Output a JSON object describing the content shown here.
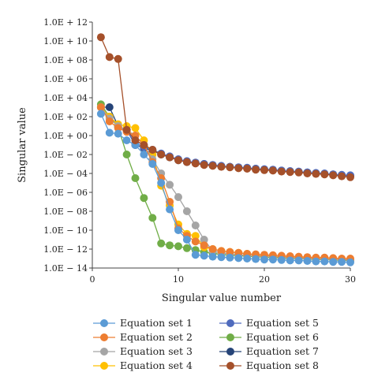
{
  "chart_data": {
    "type": "line",
    "xlabel": "Singular value number",
    "ylabel": "Singular value",
    "xlim": [
      0,
      30
    ],
    "ylim": [
      -14,
      12
    ],
    "y_scale": "log",
    "x_ticks": [
      0,
      10,
      20,
      30
    ],
    "x_tick_labels": [
      "0",
      "10",
      "20",
      "30"
    ],
    "y_ticks": [
      12,
      10,
      8,
      6,
      4,
      2,
      0,
      -2,
      -4,
      -6,
      -8,
      -10,
      -12,
      -14
    ],
    "y_tick_labels": [
      "1.0E + 12",
      "1.0E + 10",
      "1.0E + 08",
      "1.0E + 06",
      "1.0E + 04",
      "1.0E + 02",
      "1.0E + 00",
      "1.0E − 02",
      "1.0E − 04",
      "1.0E − 06",
      "1.0E − 08",
      "1.0E − 10",
      "1.0E − 12",
      "1.0E − 14"
    ],
    "grid": false,
    "legend_position": "bottom",
    "series": [
      {
        "name": "Equation set 1",
        "color": "#5b9bd5",
        "x": [
          1,
          2,
          3,
          4,
          5,
          6,
          7,
          8,
          9,
          10,
          11,
          12,
          13,
          14,
          15,
          16,
          17,
          18,
          19,
          20,
          21,
          22,
          23,
          24,
          25,
          26,
          27,
          28,
          29,
          30
        ],
        "y": [
          2.3,
          0.3,
          0.2,
          -0.5,
          -1.0,
          -2.0,
          -3.0,
          -5.0,
          -7.8,
          -10.0,
          -11.0,
          -12.6,
          -12.7,
          -12.8,
          -12.85,
          -12.9,
          -12.95,
          -13.0,
          -13.05,
          -13.1,
          -13.1,
          -13.15,
          -13.2,
          -13.2,
          -13.25,
          -13.3,
          -13.3,
          -13.35,
          -13.35,
          -13.4
        ]
      },
      {
        "name": "Equation set 2",
        "color": "#ed7d31",
        "x": [
          1,
          2,
          3,
          4,
          5,
          6,
          7,
          8,
          9,
          10,
          11,
          12,
          13,
          14,
          15,
          16,
          17,
          18,
          19,
          20,
          21,
          22,
          23,
          24,
          25,
          26,
          27,
          28,
          29,
          30
        ],
        "y": [
          3.0,
          1.5,
          0.8,
          0.4,
          0.0,
          -1.0,
          -2.8,
          -4.5,
          -7.0,
          -9.8,
          -10.6,
          -11.2,
          -11.6,
          -12.0,
          -12.2,
          -12.3,
          -12.4,
          -12.5,
          -12.55,
          -12.6,
          -12.65,
          -12.7,
          -12.75,
          -12.8,
          -12.85,
          -12.9,
          -12.9,
          -12.95,
          -13.0,
          -13.0
        ]
      },
      {
        "name": "Equation set 3",
        "color": "#a5a5a5",
        "x": [
          1,
          2,
          3,
          4,
          5,
          6,
          7,
          8,
          9,
          10,
          11,
          12,
          13,
          14,
          15,
          16,
          17,
          18,
          19,
          20,
          21,
          22,
          23,
          24,
          25,
          26,
          27,
          28,
          29,
          30
        ],
        "y": [
          3.0,
          1.8,
          1.0,
          0.6,
          0.0,
          -1.0,
          -2.5,
          -4.0,
          -5.2,
          -6.5,
          -8.0,
          -9.5,
          -11.0,
          -12.2,
          -12.4,
          -12.5,
          -12.6,
          -12.65,
          -12.7,
          -12.75,
          -12.8,
          -12.85,
          -12.9,
          -12.95,
          -13.0,
          -13.0,
          -13.05,
          -13.1,
          -13.1,
          -13.15
        ]
      },
      {
        "name": "Equation set 4",
        "color": "#ffc000",
        "x": [
          1,
          2,
          3,
          4,
          5,
          6,
          7,
          8,
          9,
          10,
          11,
          12,
          13,
          14,
          15,
          16,
          17,
          18,
          19,
          20,
          21,
          22,
          23,
          24,
          25,
          26,
          27,
          28,
          29,
          30
        ],
        "y": [
          3.0,
          2.0,
          1.2,
          1.0,
          0.8,
          -0.5,
          -2.0,
          -5.3,
          -7.4,
          -9.4,
          -10.4,
          -10.6,
          -11.8,
          -12.0,
          -12.2,
          -12.3,
          -12.4,
          -12.5,
          -12.6,
          -12.7,
          -12.75,
          -12.8,
          -12.85,
          -12.9,
          -12.95,
          -13.0,
          -13.0,
          -13.05,
          -13.1,
          -13.1
        ]
      },
      {
        "name": "Equation set 5",
        "color": "#4f6bbd",
        "x": [
          1,
          2,
          3,
          4,
          5,
          6,
          7,
          8,
          9,
          10,
          11,
          12,
          13,
          14,
          15,
          16,
          17,
          18,
          19,
          20,
          21,
          22,
          23,
          24,
          25,
          26,
          27,
          28,
          29,
          30
        ],
        "y": [
          3.0,
          2.0,
          1.0,
          0.5,
          -0.8,
          -1.2,
          -1.5,
          -1.9,
          -2.2,
          -2.5,
          -2.7,
          -2.85,
          -3.0,
          -3.1,
          -3.2,
          -3.3,
          -3.35,
          -3.4,
          -3.5,
          -3.55,
          -3.6,
          -3.7,
          -3.75,
          -3.8,
          -3.9,
          -3.95,
          -4.0,
          -4.1,
          -4.15,
          -4.2
        ]
      },
      {
        "name": "Equation set 6",
        "color": "#70ad47",
        "x": [
          1,
          2,
          3,
          4,
          5,
          6,
          7,
          8,
          9,
          10,
          11,
          12,
          13,
          14,
          15,
          16,
          17,
          18,
          19,
          20,
          21,
          22,
          23,
          24,
          25,
          26,
          27,
          28,
          29,
          30
        ],
        "y": [
          3.3,
          2.0,
          0.9,
          -2.0,
          -4.5,
          -6.6,
          -8.7,
          -11.4,
          -11.6,
          -11.7,
          -11.9,
          -12.1,
          -12.3,
          -12.45,
          -12.55,
          -12.65,
          -12.7,
          -12.75,
          -12.8,
          -12.85,
          -12.9,
          -12.95,
          -13.0,
          -13.0,
          -13.05,
          -13.1,
          -13.1,
          -13.15,
          -13.2,
          -13.2
        ]
      },
      {
        "name": "Equation set 7",
        "color": "#264478",
        "x": [
          1,
          2,
          3,
          4,
          5,
          6,
          7,
          8,
          9,
          10,
          11,
          12,
          13,
          14,
          15,
          16,
          17,
          18,
          19,
          20,
          21,
          22,
          23,
          24,
          25,
          26,
          27,
          28,
          29,
          30
        ],
        "y": [
          3.0,
          3.0,
          1.0,
          0.6,
          -1.0,
          -1.3,
          -1.6,
          -2.0,
          -2.3,
          -2.6,
          -2.8,
          -2.9,
          -3.0,
          -3.15,
          -3.25,
          -3.3,
          -3.4,
          -3.45,
          -3.5,
          -3.6,
          -3.65,
          -3.7,
          -3.8,
          -3.85,
          -3.9,
          -4.0,
          -4.05,
          -4.1,
          -4.2,
          -4.25
        ]
      },
      {
        "name": "Equation set 8",
        "color": "#a5502a",
        "x": [
          1,
          2,
          3,
          4,
          5,
          6,
          7,
          8,
          9,
          10,
          11,
          12,
          13,
          14,
          15,
          16,
          17,
          18,
          19,
          20,
          21,
          22,
          23,
          24,
          25,
          26,
          27,
          28,
          29,
          30
        ],
        "y": [
          10.4,
          8.3,
          8.1,
          0.6,
          -0.5,
          -1.0,
          -1.5,
          -2.0,
          -2.3,
          -2.6,
          -2.8,
          -2.95,
          -3.1,
          -3.2,
          -3.3,
          -3.35,
          -3.45,
          -3.5,
          -3.6,
          -3.65,
          -3.7,
          -3.8,
          -3.85,
          -3.9,
          -4.0,
          -4.05,
          -4.1,
          -4.2,
          -4.3,
          -4.4
        ]
      }
    ]
  }
}
